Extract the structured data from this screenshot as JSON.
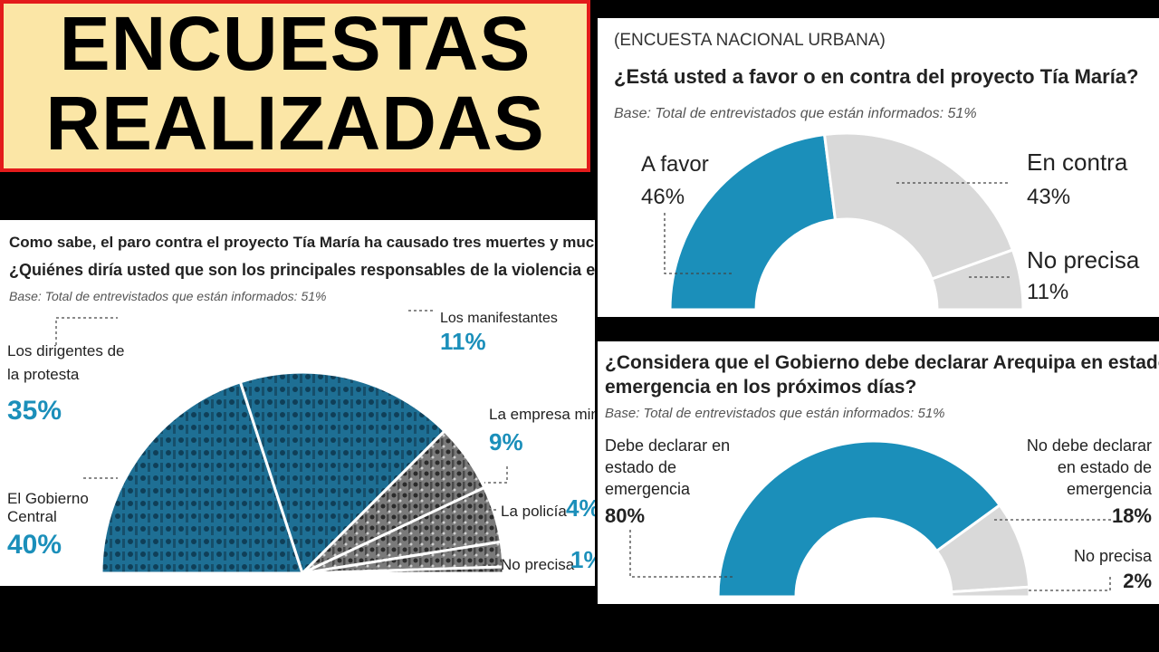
{
  "banner": {
    "line1": "ENCUESTAS",
    "line2": "REALIZADAS"
  },
  "colors": {
    "blue": "#1b8fba",
    "grey": "#d9d9d9",
    "photo_blue": "#1e6f94",
    "photo_grey": "#6e6e6e",
    "text": "#222222"
  },
  "poll1": {
    "header": "(ENCUESTA NACIONAL URBANA)",
    "question": "¿Está usted a favor o en contra del proyecto Tía María?",
    "base": "Base: Total de entrevistados que están informados: 51%",
    "chart_data": {
      "type": "pie",
      "subtype": "half-donut",
      "categories": [
        "A favor",
        "En contra",
        "No precisa"
      ],
      "values": [
        46,
        43,
        11
      ],
      "value_labels": [
        "46%",
        "43%",
        "11%"
      ],
      "colors": [
        "#1b8fba",
        "#d9d9d9",
        "#d9d9d9"
      ]
    }
  },
  "poll2": {
    "intro": "Como sabe, el paro contra el proyecto Tía María ha causado tres muertes y muchos heridos.",
    "question": "¿Quiénes diría usted que son los principales responsables de la violencia en las protestas?",
    "base": "Base: Total de entrevistados que están informados: 51%",
    "chart_data": {
      "type": "pie",
      "subtype": "half-pie",
      "categories": [
        "El Gobierno Central",
        "Los dirigentes de la protesta",
        "Los manifestantes",
        "La empresa minera",
        "La policía",
        "No precisa"
      ],
      "label_lines": [
        [
          "El Gobierno",
          "Central"
        ],
        [
          "Los dirigentes de",
          "la protesta"
        ],
        [
          "Los manifestantes"
        ],
        [
          "La empresa minera"
        ],
        [
          "La policía"
        ],
        [
          "No precisa"
        ]
      ],
      "values": [
        40,
        35,
        11,
        9,
        4,
        1
      ],
      "value_labels": [
        "40%",
        "35%",
        "11%",
        "9%",
        "4%",
        "1%"
      ]
    }
  },
  "poll3": {
    "question_line1": "¿Considera que el Gobierno debe declarar Arequipa en estado de",
    "question_line2": "emergencia en los próximos días?",
    "base": "Base: Total de entrevistados que están informados: 51%",
    "chart_data": {
      "type": "pie",
      "subtype": "half-donut",
      "categories": [
        "Debe declarar en estado de emergencia",
        "No debe declarar en estado de emergencia",
        "No precisa"
      ],
      "label_lines": [
        [
          "Debe declarar en",
          "estado de",
          "emergencia"
        ],
        [
          "No debe declarar",
          "en estado de",
          "emergencia"
        ],
        [
          "No precisa"
        ]
      ],
      "values": [
        80,
        18,
        2
      ],
      "value_labels": [
        "80%",
        "18%",
        "2%"
      ],
      "colors": [
        "#1b8fba",
        "#d9d9d9",
        "#d9d9d9"
      ]
    }
  }
}
